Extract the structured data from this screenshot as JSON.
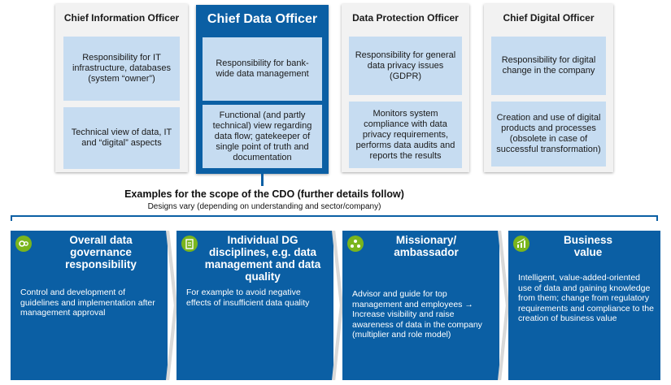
{
  "roles": [
    {
      "title": "Chief Information Officer",
      "responsibilities": [
        "Responsibility for IT infrastructure, databases (system “owner”)",
        "Technical view of data, IT and “digital” aspects"
      ]
    },
    {
      "title": "Chief Data Officer",
      "responsibilities": [
        "Responsibility for bank-wide data management",
        "Functional (and partly technical) view regarding data flow; gatekeeper of single point of truth and documentation"
      ]
    },
    {
      "title": "Data Protection Officer",
      "responsibilities": [
        "Responsibility for general data privacy issues (GDPR)",
        "Monitors system compliance with data privacy requirements, performs data audits and reports the results"
      ]
    },
    {
      "title": "Chief Digital Officer",
      "responsibilities": [
        "Responsibility for digital change in the company",
        "Creation and use of digital products and processes (obsolete in case of successful transformation)"
      ]
    }
  ],
  "scope": {
    "title": "Examples for the scope of the CDO (further details follow)",
    "subtitle": "Designs vary (depending on understanding and sector/company)"
  },
  "panels": [
    {
      "icon": "gears-icon",
      "title": "Overall data governance responsibility",
      "body": "Control and development of guidelines and implementation after management approval"
    },
    {
      "icon": "clipboard-icon",
      "title": "Individual DG disciplines, e.g. data management and data quality",
      "body": "For example to avoid negative effects of insufficient data quality"
    },
    {
      "icon": "people-network-icon",
      "title": "Missionary/ ambassador",
      "body": "Advisor and guide for top management and employees → Increase visibility and raise awareness of data in the company (multiplier and role model)"
    },
    {
      "icon": "growth-chart-icon",
      "title": "Business value",
      "body": "Intelligent, value-added-oriented use of data and gaining knowledge from them; change from regulatory requirements and compliance to the creation of business value"
    }
  ],
  "colors": {
    "primary_blue": "#0b5fa4",
    "light_blue": "#c6dcf1",
    "card_gray": "#f2f2f2",
    "icon_green": "#7ab51d"
  }
}
